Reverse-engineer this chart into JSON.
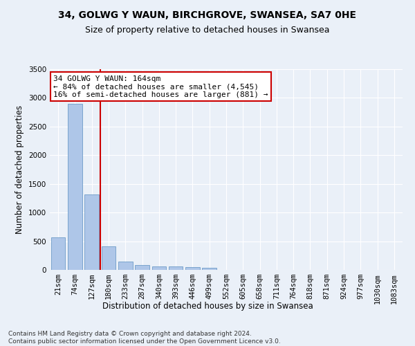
{
  "title": "34, GOLWG Y WAUN, BIRCHGROVE, SWANSEA, SA7 0HE",
  "subtitle": "Size of property relative to detached houses in Swansea",
  "xlabel": "Distribution of detached houses by size in Swansea",
  "ylabel": "Number of detached properties",
  "categories": [
    "21sqm",
    "74sqm",
    "127sqm",
    "180sqm",
    "233sqm",
    "287sqm",
    "340sqm",
    "393sqm",
    "446sqm",
    "499sqm",
    "552sqm",
    "605sqm",
    "658sqm",
    "711sqm",
    "764sqm",
    "818sqm",
    "871sqm",
    "924sqm",
    "977sqm",
    "1030sqm",
    "1083sqm"
  ],
  "values": [
    570,
    2900,
    1320,
    410,
    150,
    85,
    60,
    55,
    45,
    35,
    0,
    0,
    0,
    0,
    0,
    0,
    0,
    0,
    0,
    0,
    0
  ],
  "bar_color": "#aec6e8",
  "bar_edge_color": "#5a8fc0",
  "vline_x_index": 2,
  "vline_color": "#cc0000",
  "annotation_text": "34 GOLWG Y WAUN: 164sqm\n← 84% of detached houses are smaller (4,545)\n16% of semi-detached houses are larger (881) →",
  "annotation_box_facecolor": "#ffffff",
  "annotation_box_edgecolor": "#cc0000",
  "ylim": [
    0,
    3500
  ],
  "yticks": [
    0,
    500,
    1000,
    1500,
    2000,
    2500,
    3000,
    3500
  ],
  "footer": "Contains HM Land Registry data © Crown copyright and database right 2024.\nContains public sector information licensed under the Open Government Licence v3.0.",
  "bg_color": "#eaf0f8",
  "grid_color": "#ffffff",
  "title_fontsize": 10,
  "subtitle_fontsize": 9,
  "axis_label_fontsize": 8.5,
  "tick_fontsize": 7.5,
  "footer_fontsize": 6.5,
  "annotation_fontsize": 8
}
